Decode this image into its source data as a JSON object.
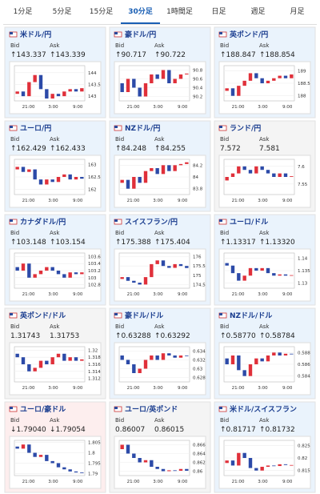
{
  "tabs": [
    "1分足",
    "5分足",
    "15分足",
    "30分足",
    "1時間足",
    "日足",
    "週足",
    "月足"
  ],
  "active_tab": 3,
  "labels": {
    "bid": "Bid",
    "ask": "Ask"
  },
  "time_labels": [
    "21:00",
    "3:00",
    "9:00"
  ],
  "cards": [
    {
      "pair": "米ドル/円",
      "bid": "↑143.337",
      "ask": "↑143.339",
      "bg": "#eaf3fc",
      "ylim": [
        142.8,
        144.3
      ],
      "yticks": [
        144,
        143.5,
        143
      ],
      "open": 143.1,
      "closes": [
        143.2,
        143.0,
        143.6,
        143.9,
        143.3,
        142.9,
        143.1,
        143.0,
        143.2,
        143.3,
        143.2,
        143.34
      ]
    },
    {
      "pair": "豪ドル/円",
      "bid": "↑90.717",
      "ask": "↑90.722",
      "bg": "#eaf3fc",
      "ylim": [
        90.1,
        90.9
      ],
      "yticks": [
        90.8,
        90.6,
        90.4,
        90.2
      ],
      "open": 90.5,
      "closes": [
        90.3,
        90.6,
        90.4,
        90.2,
        90.5,
        90.7,
        90.6,
        90.8,
        90.5,
        90.6,
        90.7,
        90.72
      ]
    },
    {
      "pair": "英ポンド/円",
      "bid": "↑188.847",
      "ask": "↑188.854",
      "bg": "#eaf3fc",
      "ylim": [
        187.8,
        189.2
      ],
      "yticks": [
        189,
        188.5,
        188
      ],
      "open": 188.2,
      "closes": [
        188.3,
        188.0,
        188.4,
        188.6,
        188.9,
        188.7,
        188.5,
        188.6,
        188.7,
        188.8,
        188.7,
        188.85
      ]
    },
    {
      "pair": "ユーロ/円",
      "bid": "↑162.429",
      "ask": "↑162.433",
      "bg": "#eaf3fc",
      "ylim": [
        161.8,
        163.2
      ],
      "yticks": [
        163,
        162.5,
        162
      ],
      "open": 162.8,
      "closes": [
        162.9,
        162.7,
        162.8,
        162.4,
        162.2,
        162.4,
        162.3,
        162.5,
        162.6,
        162.4,
        162.5,
        162.43
      ]
    },
    {
      "pair": "NZドル/円",
      "bid": "↑84.248",
      "ask": "↑84.255",
      "bg": "#eaf3fc",
      "ylim": [
        83.7,
        84.3
      ],
      "yticks": [
        84.2,
        84,
        83.8
      ],
      "open": 83.9,
      "closes": [
        83.95,
        83.8,
        84.0,
        83.9,
        84.1,
        84.15,
        84.05,
        84.2,
        84.1,
        84.2,
        84.22,
        84.25
      ]
    },
    {
      "pair": "ランド/円",
      "bid": "7.572",
      "ask": "7.581",
      "bg": "#f4f4f4",
      "ylim": [
        7.52,
        7.62
      ],
      "yticks": [
        7.6,
        7.55
      ],
      "open": 7.56,
      "closes": [
        7.57,
        7.58,
        7.6,
        7.59,
        7.58,
        7.6,
        7.59,
        7.58,
        7.57,
        7.58,
        7.57,
        7.572
      ]
    },
    {
      "pair": "カナダドル/円",
      "bid": "↑103.148",
      "ask": "↑103.154",
      "bg": "#eaf3fc",
      "ylim": [
        102.7,
        103.7
      ],
      "yticks": [
        103.6,
        103.4,
        103.2,
        103,
        102.8
      ],
      "open": 103.3,
      "closes": [
        103.2,
        103.4,
        103.0,
        103.1,
        103.2,
        103.3,
        103.2,
        103.1,
        103.0,
        103.15,
        103.1,
        103.15
      ]
    },
    {
      "pair": "スイスフラン/円",
      "bid": "↑175.388",
      "ask": "↑175.404",
      "bg": "#eaf3fc",
      "ylim": [
        174.3,
        176.2
      ],
      "yticks": [
        176,
        175.5,
        175,
        174.5
      ],
      "open": 174.8,
      "closes": [
        174.9,
        174.7,
        174.6,
        174.5,
        174.9,
        175.6,
        175.8,
        175.5,
        175.4,
        175.6,
        175.5,
        175.39
      ]
    },
    {
      "pair": "ユーロ/ドル",
      "bid": "↑1.13317",
      "ask": "↑1.13320",
      "bg": "#eaf3fc",
      "ylim": [
        1.128,
        1.142
      ],
      "yticks": [
        1.14,
        1.135,
        1.13
      ],
      "open": 1.138,
      "closes": [
        1.137,
        1.134,
        1.131,
        1.133,
        1.136,
        1.135,
        1.136,
        1.134,
        1.133,
        1.1335,
        1.133,
        1.1332
      ]
    },
    {
      "pair": "英ポンド/ドル",
      "bid": "1.31743",
      "ask": "1.31753",
      "bg": "#f4f4f4",
      "ylim": [
        1.311,
        1.321
      ],
      "yticks": [
        1.32,
        1.318,
        1.316,
        1.314,
        1.312
      ],
      "open": 1.319,
      "closes": [
        1.318,
        1.316,
        1.314,
        1.315,
        1.317,
        1.316,
        1.318,
        1.319,
        1.317,
        1.318,
        1.317,
        1.3174
      ]
    },
    {
      "pair": "豪ドル/ドル",
      "bid": "↑0.63288",
      "ask": "↑0.63292",
      "bg": "#eaf3fc",
      "ylim": [
        0.627,
        0.635
      ],
      "yticks": [
        0.634,
        0.632,
        0.63,
        0.628
      ],
      "open": 0.633,
      "closes": [
        0.632,
        0.631,
        0.629,
        0.63,
        0.632,
        0.633,
        0.632,
        0.6335,
        0.633,
        0.6325,
        0.633,
        0.6329
      ]
    },
    {
      "pair": "NZドル/ドル",
      "bid": "↑0.58770",
      "ask": "↑0.58784",
      "bg": "#eaf3fc",
      "ylim": [
        0.583,
        0.589
      ],
      "yticks": [
        0.588,
        0.586,
        0.584
      ],
      "open": 0.587,
      "closes": [
        0.586,
        0.5875,
        0.585,
        0.584,
        0.586,
        0.587,
        0.5865,
        0.5875,
        0.588,
        0.5875,
        0.5878,
        0.5877
      ]
    },
    {
      "pair": "ユーロ/豪ドル",
      "bid": "↓1.79040",
      "ask": "↓1.79054",
      "bg": "#fdeeee",
      "ylim": [
        1.789,
        1.806
      ],
      "yticks": [
        1.805,
        1.8,
        1.795,
        1.79
      ],
      "open": 1.803,
      "closes": [
        1.802,
        1.804,
        1.8,
        1.798,
        1.799,
        1.796,
        1.795,
        1.793,
        1.792,
        1.791,
        1.7905,
        1.7904
      ]
    },
    {
      "pair": "ユーロ/英ポンド",
      "bid": "0.86007",
      "ask": "0.86015",
      "bg": "#f4f4f4",
      "ylim": [
        0.859,
        0.867
      ],
      "yticks": [
        0.866,
        0.864,
        0.862,
        0.86
      ],
      "open": 0.865,
      "closes": [
        0.866,
        0.864,
        0.863,
        0.862,
        0.8625,
        0.861,
        0.8605,
        0.86,
        0.8602,
        0.8601,
        0.8605,
        0.8601
      ]
    },
    {
      "pair": "米ドル/スイスフラン",
      "bid": "↑0.81717",
      "ask": "↑0.81732",
      "bg": "#eaf3fc",
      "ylim": [
        0.813,
        0.827
      ],
      "yticks": [
        0.825,
        0.82,
        0.815
      ],
      "open": 0.818,
      "closes": [
        0.819,
        0.817,
        0.822,
        0.82,
        0.816,
        0.815,
        0.8165,
        0.817,
        0.8168,
        0.8175,
        0.8172,
        0.8172
      ]
    }
  ]
}
